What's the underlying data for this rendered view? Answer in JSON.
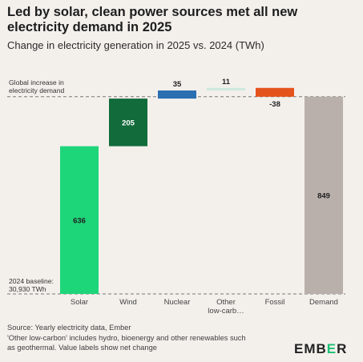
{
  "title": "Led by solar, clean power sources met all new electricity demand in 2025",
  "subtitle": "Change in electricity generation in 2025 vs. 2024 (TWh)",
  "annotations": {
    "top_line1": "Global increase in",
    "top_line2": "electricity demand",
    "bottom_line1": "2024 baseline:",
    "bottom_line2": "30,930 TWh"
  },
  "source": {
    "line1": "Source: Yearly electricity data, Ember",
    "line2": "'Other low-carbon' includes hydro, bioenergy and other renewables such",
    "line3": "as geothermal. Value labels show net change"
  },
  "logo": {
    "pre": "EMB",
    "mark": "E",
    "post": "R"
  },
  "colors": {
    "solar": "#1ed67a",
    "wind": "#116b3a",
    "nuclear": "#2a6fb0",
    "other": "#cde9dd",
    "fossil": "#e5531c",
    "demand": "#b9b0ac"
  },
  "chart_data": {
    "type": "waterfall",
    "title": "Led by solar, clean power sources met all new electricity demand in 2025",
    "subtitle": "Change in electricity generation in 2025 vs. 2024 (TWh)",
    "categories": [
      "Solar",
      "Wind",
      "Nuclear",
      "Other low-carb…",
      "Fossil",
      "Demand"
    ],
    "values": [
      636,
      205,
      35,
      11,
      -38,
      849
    ],
    "value_labels": [
      "636",
      "205",
      "35",
      "11",
      "-38",
      "849"
    ],
    "total_index": 5,
    "ylim": [
      0,
      900
    ],
    "grid": false
  }
}
